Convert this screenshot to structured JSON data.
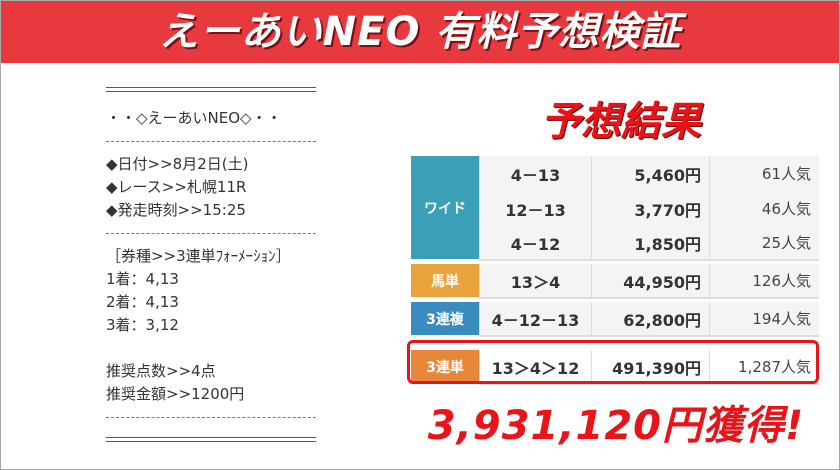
{
  "header": {
    "title": "えーあいNEO 有料予想検証"
  },
  "memo": {
    "lines": [
      "・・◇えーあいNEO◇・・",
      "◆日付>>8月2日(土)",
      "◆レース>>札幌11R",
      "◆発走時刻>>15:25",
      "［券種>>3連単ﾌｫｰﾒｰｼｮﾝ］",
      "1着：4,13",
      "2着：4,13",
      "3着：3,12",
      "推奨点数>>4点",
      "推奨金額>>1200円"
    ]
  },
  "result": {
    "title": "予想結果",
    "groups": [
      {
        "label": "ワイド",
        "rows": [
          [
            "4－13",
            "5,460円",
            "61人気"
          ],
          [
            "12－13",
            "3,770円",
            "46人気"
          ],
          [
            "4－12",
            "1,850円",
            "25人気"
          ]
        ]
      },
      {
        "label": "馬単",
        "rows": [
          [
            "13＞4",
            "44,950円",
            "126人気"
          ]
        ]
      },
      {
        "label": "3連複",
        "rows": [
          [
            "4－12－13",
            "62,800円",
            "194人気"
          ]
        ]
      },
      {
        "label": "3連単",
        "rows": [
          [
            "13＞4＞12",
            "491,390円",
            "1,287人気"
          ]
        ]
      }
    ],
    "winnings": "3,931,120円獲得!"
  }
}
